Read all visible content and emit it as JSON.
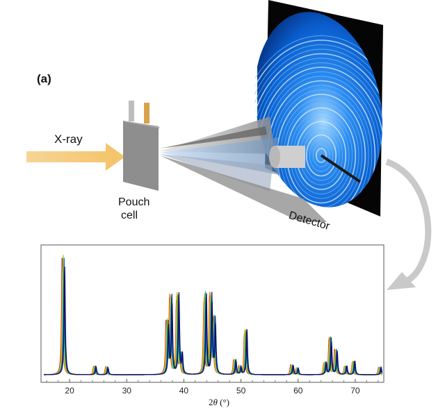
{
  "figure": {
    "panel_label": "(a)",
    "beam_label": "X-ray",
    "sample_label_line1": "Pouch",
    "sample_label_line2": "cell",
    "detector_label": "Detector"
  },
  "chart_data": {
    "type": "line",
    "xlabel_base": "2",
    "xlabel_var": "θ",
    "xlabel_unit": " (°)",
    "ylabel": "",
    "xlim": [
      15,
      75
    ],
    "ylim": [
      0,
      1
    ],
    "x_ticks": [
      20,
      30,
      40,
      50,
      60,
      70
    ],
    "grid": false,
    "legend": "none",
    "peaks": [
      {
        "x": 18.7,
        "h": 0.95
      },
      {
        "x": 24.2,
        "h": 0.07
      },
      {
        "x": 26.3,
        "h": 0.06
      },
      {
        "x": 36.9,
        "h": 0.42
      },
      {
        "x": 37.5,
        "h": 0.62
      },
      {
        "x": 38.7,
        "h": 0.64
      },
      {
        "x": 39.3,
        "h": 0.16
      },
      {
        "x": 43.5,
        "h": 0.65
      },
      {
        "x": 44.5,
        "h": 0.63
      },
      {
        "x": 45.1,
        "h": 0.45
      },
      {
        "x": 48.7,
        "h": 0.12
      },
      {
        "x": 49.6,
        "h": 0.06
      },
      {
        "x": 50.6,
        "h": 0.36
      },
      {
        "x": 58.7,
        "h": 0.08
      },
      {
        "x": 59.6,
        "h": 0.05
      },
      {
        "x": 64.5,
        "h": 0.1
      },
      {
        "x": 65.4,
        "h": 0.3
      },
      {
        "x": 66.4,
        "h": 0.2
      },
      {
        "x": 68.1,
        "h": 0.07
      },
      {
        "x": 69.5,
        "h": 0.11
      },
      {
        "x": 74.1,
        "h": 0.06
      }
    ],
    "series_colors": [
      "#c8000a",
      "#ff5a00",
      "#ffae00",
      "#f2e600",
      "#9bd61c",
      "#22b85c",
      "#14b4b4",
      "#1a6fd6",
      "#1a2a9c",
      "#101060"
    ],
    "peak_shifts": [
      0.0,
      0.05,
      0.1,
      0.15,
      0.2,
      0.25,
      0.3,
      0.35,
      0.4,
      0.45
    ]
  }
}
